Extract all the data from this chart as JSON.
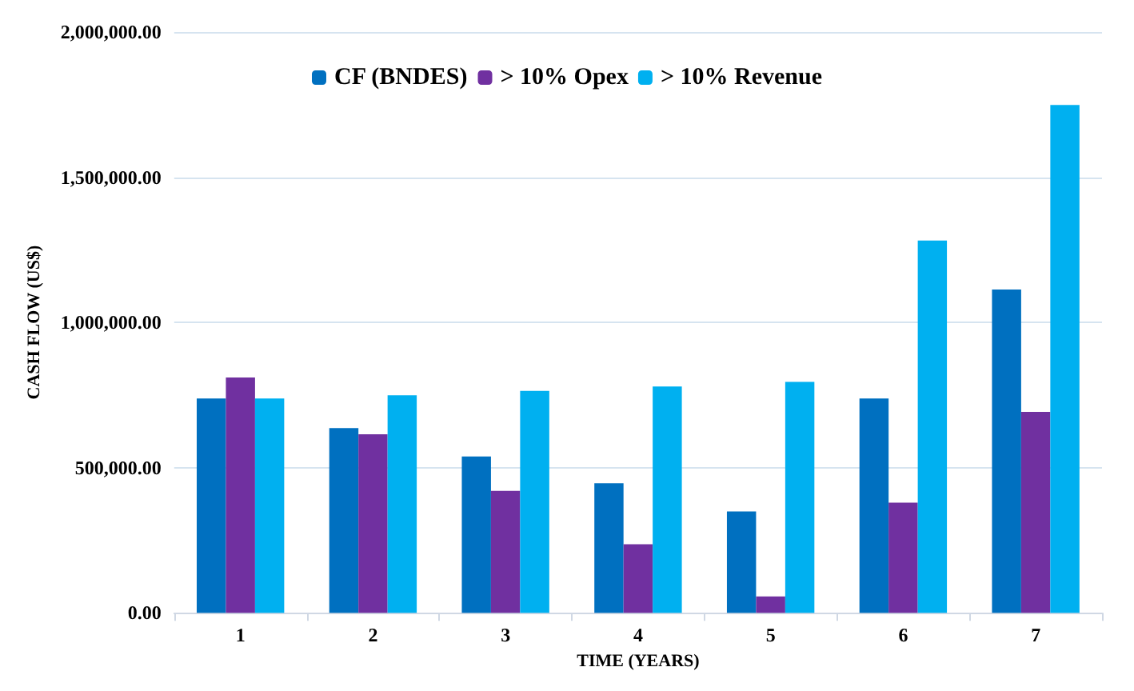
{
  "chart_data": {
    "type": "bar",
    "xlabel": "TIME (YEARS)",
    "ylabel": "CASH FLOW (US$)",
    "categories": [
      "1",
      "2",
      "3",
      "4",
      "5",
      "6",
      "7"
    ],
    "series": [
      {
        "name": "CF (BNDES)",
        "color": "#0070c0",
        "values": [
          738000,
          636000,
          538000,
          446000,
          349000,
          738000,
          1113000
        ]
      },
      {
        "name": "> 10% Opex",
        "color": "#7030a0",
        "values": [
          810000,
          615000,
          420000,
          236000,
          56000,
          379000,
          692000
        ]
      },
      {
        "name": "> 10% Revenue",
        "color": "#00b0f0",
        "values": [
          738000,
          749000,
          764000,
          779000,
          795000,
          1282000,
          1749000
        ]
      }
    ],
    "ylim": [
      0,
      2000000
    ],
    "yticks": [
      {
        "value": 0,
        "label": "0.00"
      },
      {
        "value": 500000,
        "label": "500,000.00"
      },
      {
        "value": 1000000,
        "label": "1,000,000.00"
      },
      {
        "value": 1500000,
        "label": "1,500,000.00"
      },
      {
        "value": 2000000,
        "label": "2,000,000.00"
      }
    ],
    "grid": "y",
    "legend": "top"
  }
}
